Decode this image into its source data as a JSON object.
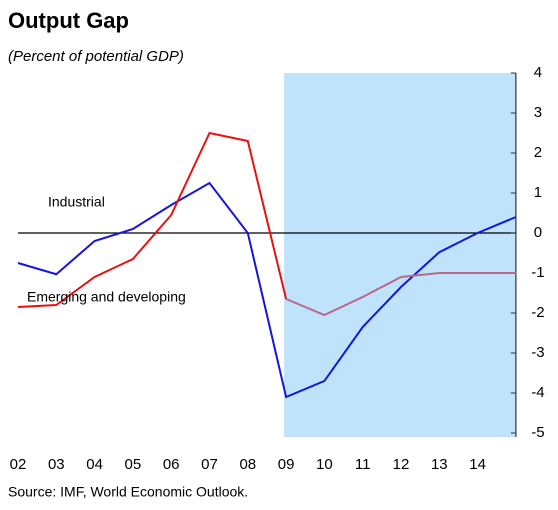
{
  "chart_data": {
    "type": "line",
    "title": "Output Gap",
    "subtitle": "(Percent of potential GDP)",
    "source": "Source: IMF, World Economic Outlook.",
    "categories": [
      "02",
      "03",
      "04",
      "05",
      "06",
      "07",
      "08",
      "09",
      "10",
      "11",
      "12",
      "13",
      "14",
      null
    ],
    "shaded_from": "09",
    "shade_color": "#bfe3fa",
    "series": [
      {
        "name": "Industrial",
        "color": "#1515e0",
        "values": [
          -0.75,
          -1.03,
          -0.2,
          0.1,
          0.7,
          1.25,
          0,
          -4.1,
          -3.7,
          -2.35,
          -1.35,
          -0.48,
          0,
          0.4
        ]
      },
      {
        "name": "Emerging and developing",
        "color": "#e81010",
        "projection_color": "#b8688a",
        "values": [
          -1.85,
          -1.8,
          -1.1,
          -0.65,
          0.45,
          2.5,
          2.3,
          -1.65,
          -2.05,
          -1.6,
          -1.1,
          -1.0,
          -1.0,
          -1.0
        ]
      }
    ],
    "ylim": [
      -5,
      4
    ],
    "yticks": [
      4,
      3,
      2,
      1,
      0,
      -1,
      -2,
      -3,
      -4,
      -5
    ],
    "y_axis_side": "right"
  }
}
